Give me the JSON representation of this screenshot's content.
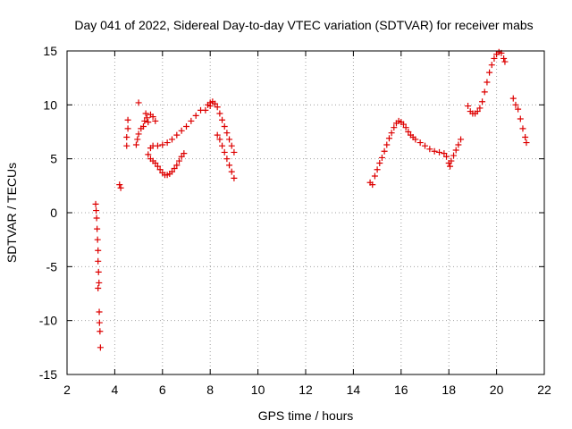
{
  "chart_data": {
    "type": "scatter",
    "title": "Day 041 of 2022, Sidereal Day-to-day VTEC variation (SDTVAR) for receiver mabs",
    "xlabel": "GPS time / hours",
    "ylabel": "SDTVAR / TECUs",
    "xlim": [
      2,
      22
    ],
    "ylim": [
      -15,
      15
    ],
    "xticks": [
      2,
      4,
      6,
      8,
      10,
      12,
      14,
      16,
      18,
      20,
      22
    ],
    "yticks": [
      -15,
      -10,
      -5,
      0,
      5,
      10,
      15
    ],
    "xtick_labels": [
      "2",
      "4",
      "6",
      "8",
      "10",
      "12",
      "14",
      "16",
      "18",
      "20",
      "22"
    ],
    "ytick_labels": [
      "-15",
      "-10",
      "-5",
      "0",
      "5",
      "10",
      "15"
    ],
    "grid": true,
    "marker": "+",
    "color": "#dd0000",
    "series": [
      {
        "name": "SDTVAR",
        "points": [
          [
            3.2,
            0.8
          ],
          [
            3.22,
            0.2
          ],
          [
            3.24,
            -0.5
          ],
          [
            3.26,
            -1.5
          ],
          [
            3.28,
            -2.5
          ],
          [
            3.3,
            -3.5
          ],
          [
            3.3,
            -4.5
          ],
          [
            3.32,
            -5.5
          ],
          [
            3.34,
            -6.5
          ],
          [
            3.3,
            -7.0
          ],
          [
            3.35,
            -9.2
          ],
          [
            3.36,
            -10.2
          ],
          [
            3.38,
            -11.0
          ],
          [
            3.4,
            -12.5
          ],
          [
            4.2,
            2.6
          ],
          [
            4.25,
            2.3
          ],
          [
            4.5,
            6.2
          ],
          [
            4.5,
            7.0
          ],
          [
            4.55,
            7.8
          ],
          [
            4.55,
            8.6
          ],
          [
            4.9,
            6.3
          ],
          [
            4.95,
            6.8
          ],
          [
            5.0,
            10.2
          ],
          [
            5.0,
            7.3
          ],
          [
            5.1,
            7.8
          ],
          [
            5.2,
            8.0
          ],
          [
            5.25,
            8.5
          ],
          [
            5.3,
            9.2
          ],
          [
            5.35,
            8.8
          ],
          [
            5.4,
            8.4
          ],
          [
            5.5,
            9.1
          ],
          [
            5.6,
            8.9
          ],
          [
            5.7,
            8.5
          ],
          [
            5.4,
            5.4
          ],
          [
            5.5,
            5.0
          ],
          [
            5.6,
            4.8
          ],
          [
            5.7,
            4.6
          ],
          [
            5.8,
            4.3
          ],
          [
            5.9,
            4.0
          ],
          [
            6.0,
            3.7
          ],
          [
            6.1,
            3.5
          ],
          [
            6.2,
            3.5
          ],
          [
            6.3,
            3.6
          ],
          [
            6.4,
            3.8
          ],
          [
            6.5,
            4.1
          ],
          [
            6.6,
            4.4
          ],
          [
            6.7,
            4.8
          ],
          [
            6.8,
            5.2
          ],
          [
            6.9,
            5.5
          ],
          [
            5.5,
            6.0
          ],
          [
            5.6,
            6.2
          ],
          [
            5.8,
            6.2
          ],
          [
            6.0,
            6.3
          ],
          [
            6.2,
            6.5
          ],
          [
            6.4,
            6.8
          ],
          [
            6.6,
            7.2
          ],
          [
            6.8,
            7.6
          ],
          [
            7.0,
            8.0
          ],
          [
            7.2,
            8.5
          ],
          [
            7.4,
            9.0
          ],
          [
            7.6,
            9.5
          ],
          [
            7.8,
            9.5
          ],
          [
            8.0,
            9.9
          ],
          [
            7.9,
            10.0
          ],
          [
            8.0,
            10.2
          ],
          [
            8.1,
            10.3
          ],
          [
            8.2,
            10.1
          ],
          [
            8.3,
            9.8
          ],
          [
            8.4,
            9.2
          ],
          [
            8.5,
            8.6
          ],
          [
            8.6,
            8.0
          ],
          [
            8.7,
            7.4
          ],
          [
            8.8,
            6.8
          ],
          [
            8.9,
            6.2
          ],
          [
            9.0,
            5.6
          ],
          [
            8.3,
            7.2
          ],
          [
            8.4,
            6.8
          ],
          [
            8.5,
            6.2
          ],
          [
            8.6,
            5.6
          ],
          [
            8.7,
            5.0
          ],
          [
            8.8,
            4.4
          ],
          [
            8.9,
            3.8
          ],
          [
            9.0,
            3.2
          ],
          [
            14.7,
            2.8
          ],
          [
            14.8,
            2.6
          ],
          [
            14.9,
            3.4
          ],
          [
            15.0,
            4.0
          ],
          [
            15.1,
            4.6
          ],
          [
            15.2,
            5.1
          ],
          [
            15.3,
            5.7
          ],
          [
            15.4,
            6.3
          ],
          [
            15.5,
            6.9
          ],
          [
            15.6,
            7.4
          ],
          [
            15.7,
            7.9
          ],
          [
            15.8,
            8.3
          ],
          [
            15.9,
            8.5
          ],
          [
            16.0,
            8.4
          ],
          [
            16.1,
            8.2
          ],
          [
            16.2,
            7.9
          ],
          [
            16.3,
            7.5
          ],
          [
            16.4,
            7.2
          ],
          [
            16.5,
            7.0
          ],
          [
            16.6,
            6.8
          ],
          [
            16.8,
            6.5
          ],
          [
            17.0,
            6.2
          ],
          [
            17.2,
            5.9
          ],
          [
            17.4,
            5.7
          ],
          [
            17.6,
            5.6
          ],
          [
            17.8,
            5.5
          ],
          [
            17.9,
            5.2
          ],
          [
            18.0,
            4.6
          ],
          [
            18.05,
            4.3
          ],
          [
            18.1,
            4.8
          ],
          [
            18.2,
            5.3
          ],
          [
            18.3,
            5.8
          ],
          [
            18.4,
            6.3
          ],
          [
            18.5,
            6.8
          ],
          [
            18.8,
            9.9
          ],
          [
            18.9,
            9.4
          ],
          [
            19.0,
            9.2
          ],
          [
            19.1,
            9.2
          ],
          [
            19.2,
            9.4
          ],
          [
            19.3,
            9.7
          ],
          [
            19.4,
            10.3
          ],
          [
            19.5,
            11.2
          ],
          [
            19.6,
            12.1
          ],
          [
            19.7,
            13.0
          ],
          [
            19.8,
            13.7
          ],
          [
            19.9,
            14.3
          ],
          [
            20.0,
            14.7
          ],
          [
            20.1,
            14.9
          ],
          [
            20.2,
            14.8
          ],
          [
            20.3,
            14.3
          ],
          [
            20.35,
            14.0
          ],
          [
            20.7,
            10.6
          ],
          [
            20.8,
            10.0
          ],
          [
            20.9,
            9.6
          ],
          [
            21.0,
            8.7
          ],
          [
            21.1,
            7.8
          ],
          [
            21.2,
            7.0
          ],
          [
            21.25,
            6.5
          ]
        ]
      }
    ]
  }
}
